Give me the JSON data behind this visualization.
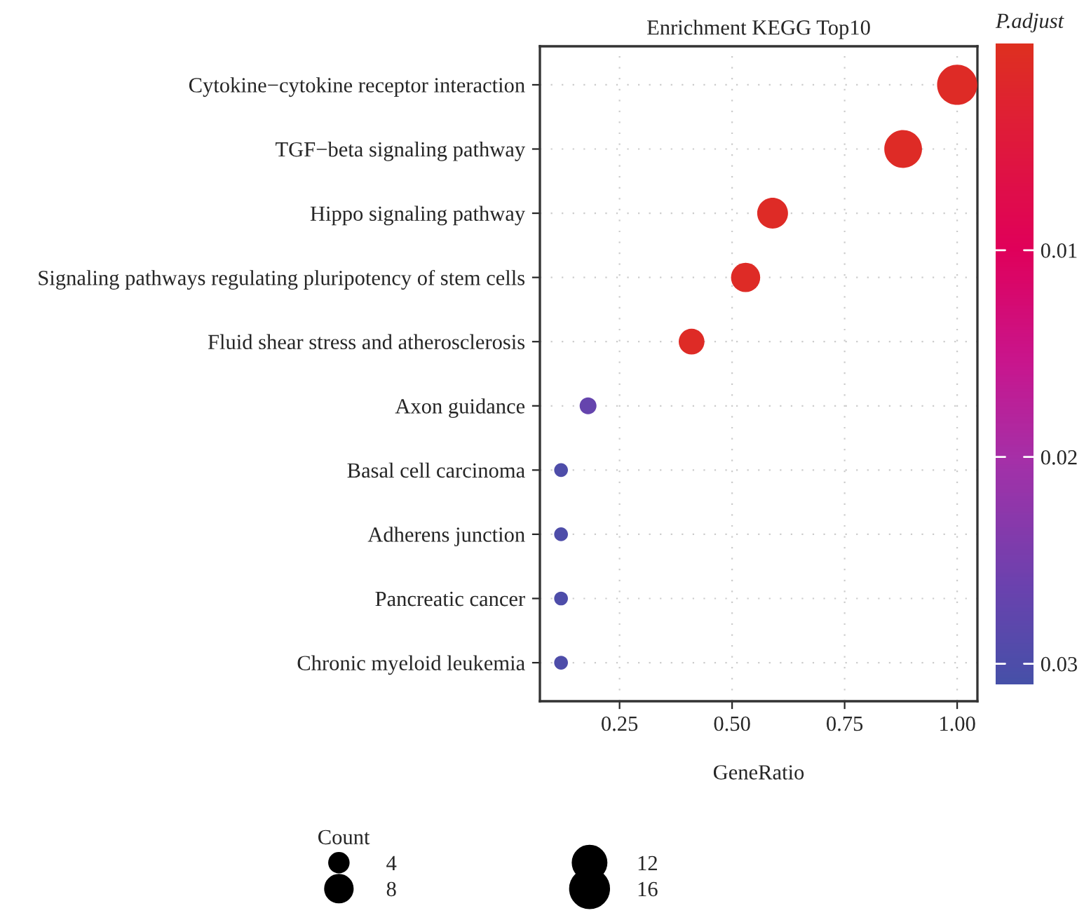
{
  "chart_data": {
    "type": "bubble",
    "orientation": "horizontal",
    "title": "Enrichment KEGG Top10",
    "xlabel": "GeneRatio",
    "clabel": "P.adjust",
    "legend_title": "Count",
    "categories": [
      "Cytokine−cytokine receptor interaction",
      "TGF−beta signaling pathway",
      "Hippo signaling pathway",
      "Signaling pathways regulating pluripotency of stem cells",
      "Fluid shear stress and atherosclerosis",
      "Axon guidance",
      "Basal cell carcinoma",
      "Adherens junction",
      "Pancreatic cancer",
      "Chronic myeloid leukemia"
    ],
    "values": [
      1.0,
      0.88,
      0.59,
      0.53,
      0.41,
      0.18,
      0.12,
      0.12,
      0.12,
      0.12
    ],
    "sizes": [
      17,
      15,
      10,
      9,
      7,
      3,
      2,
      2,
      2,
      2
    ],
    "size_legend": [
      4,
      8,
      12,
      16
    ],
    "cvalues": [
      0.001,
      0.001,
      0.001,
      0.001,
      0.001,
      0.027,
      0.03,
      0.03,
      0.03,
      0.03
    ],
    "clim": [
      0.0,
      0.031
    ],
    "cticks": [
      0.01,
      0.02,
      0.03
    ],
    "xlim": [
      0.073,
      1.045
    ],
    "xticks": [
      0.25,
      {
        "value": 0.5,
        "label": "0.50"
      },
      0.75,
      {
        "value": 1.0,
        "label": "1.00"
      }
    ],
    "grid": true
  }
}
